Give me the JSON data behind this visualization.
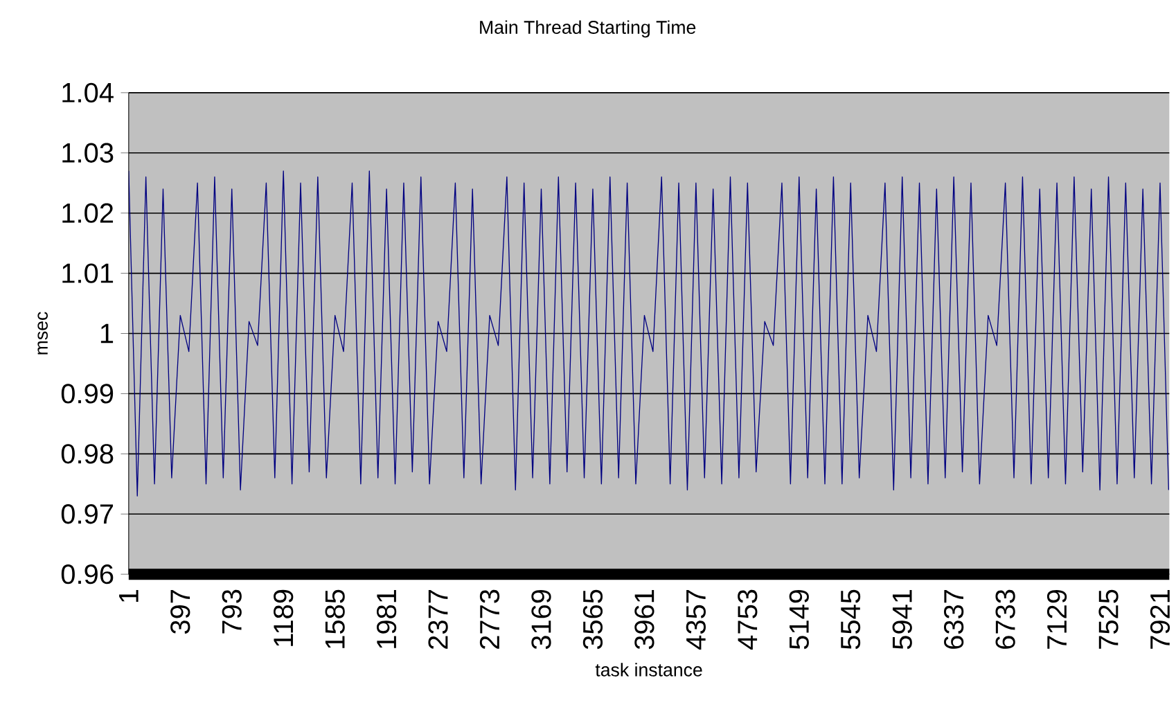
{
  "chart_data": {
    "type": "line",
    "title": "Main Thread Starting Time",
    "xlabel": "task instance",
    "ylabel": "msec",
    "xlim": [
      1,
      7992
    ],
    "xticks": [
      1,
      397,
      793,
      1189,
      1585,
      1981,
      2377,
      2773,
      3169,
      3565,
      3961,
      4357,
      4753,
      5149,
      5545,
      5941,
      6337,
      6733,
      7129,
      7525,
      7921
    ],
    "ylim": [
      0.96,
      1.04
    ],
    "yticks": [
      0.96,
      0.97,
      0.98,
      0.99,
      1,
      1.01,
      1.02,
      1.03,
      1.04
    ],
    "grid": "y",
    "x": [
      1,
      67,
      133,
      199,
      265,
      331,
      397,
      463,
      529,
      595,
      661,
      727,
      793,
      859,
      925,
      991,
      1057,
      1123,
      1189,
      1255,
      1321,
      1387,
      1453,
      1519,
      1585,
      1651,
      1717,
      1783,
      1849,
      1915,
      1981,
      2047,
      2113,
      2179,
      2245,
      2311,
      2377,
      2443,
      2509,
      2575,
      2641,
      2707,
      2773,
      2839,
      2905,
      2971,
      3037,
      3103,
      3169,
      3235,
      3301,
      3367,
      3433,
      3499,
      3565,
      3631,
      3697,
      3763,
      3829,
      3895,
      3961,
      4027,
      4093,
      4159,
      4225,
      4291,
      4357,
      4423,
      4489,
      4555,
      4621,
      4687,
      4753,
      4819,
      4885,
      4951,
      5017,
      5083,
      5149,
      5215,
      5281,
      5347,
      5413,
      5479,
      5545,
      5611,
      5677,
      5743,
      5809,
      5875,
      5941,
      6007,
      6073,
      6139,
      6205,
      6271,
      6337,
      6403,
      6469,
      6535,
      6601,
      6667,
      6733,
      6799,
      6865,
      6931,
      6997,
      7063,
      7129,
      7195,
      7261,
      7327,
      7393,
      7459,
      7525,
      7591,
      7657,
      7723,
      7789,
      7855,
      7921,
      7987
    ],
    "series": [
      {
        "color": "#000080",
        "values": [
          1.027,
          0.973,
          1.026,
          0.975,
          1.024,
          0.976,
          1.003,
          0.997,
          1.025,
          0.975,
          1.026,
          0.976,
          1.024,
          0.974,
          1.002,
          0.998,
          1.025,
          0.976,
          1.027,
          0.975,
          1.025,
          0.977,
          1.026,
          0.976,
          1.003,
          0.997,
          1.025,
          0.975,
          1.027,
          0.976,
          1.024,
          0.975,
          1.025,
          0.977,
          1.026,
          0.975,
          1.002,
          0.997,
          1.025,
          0.976,
          1.024,
          0.975,
          1.003,
          0.998,
          1.026,
          0.974,
          1.025,
          0.976,
          1.024,
          0.975,
          1.026,
          0.977,
          1.025,
          0.976,
          1.024,
          0.975,
          1.026,
          0.976,
          1.025,
          0.975,
          1.003,
          0.997,
          1.026,
          0.975,
          1.025,
          0.974,
          1.025,
          0.976,
          1.024,
          0.975,
          1.026,
          0.976,
          1.025,
          0.977,
          1.002,
          0.998,
          1.025,
          0.975,
          1.026,
          0.976,
          1.024,
          0.975,
          1.026,
          0.975,
          1.025,
          0.976,
          1.003,
          0.997,
          1.025,
          0.974,
          1.026,
          0.976,
          1.025,
          0.975,
          1.024,
          0.976,
          1.026,
          0.977,
          1.025,
          0.975,
          1.003,
          0.998,
          1.025,
          0.976,
          1.026,
          0.975,
          1.024,
          0.976,
          1.025,
          0.975,
          1.026,
          0.977,
          1.024,
          0.974,
          1.026,
          0.975,
          1.025,
          0.976,
          1.024,
          0.975,
          1.025,
          0.974
        ]
      }
    ]
  }
}
